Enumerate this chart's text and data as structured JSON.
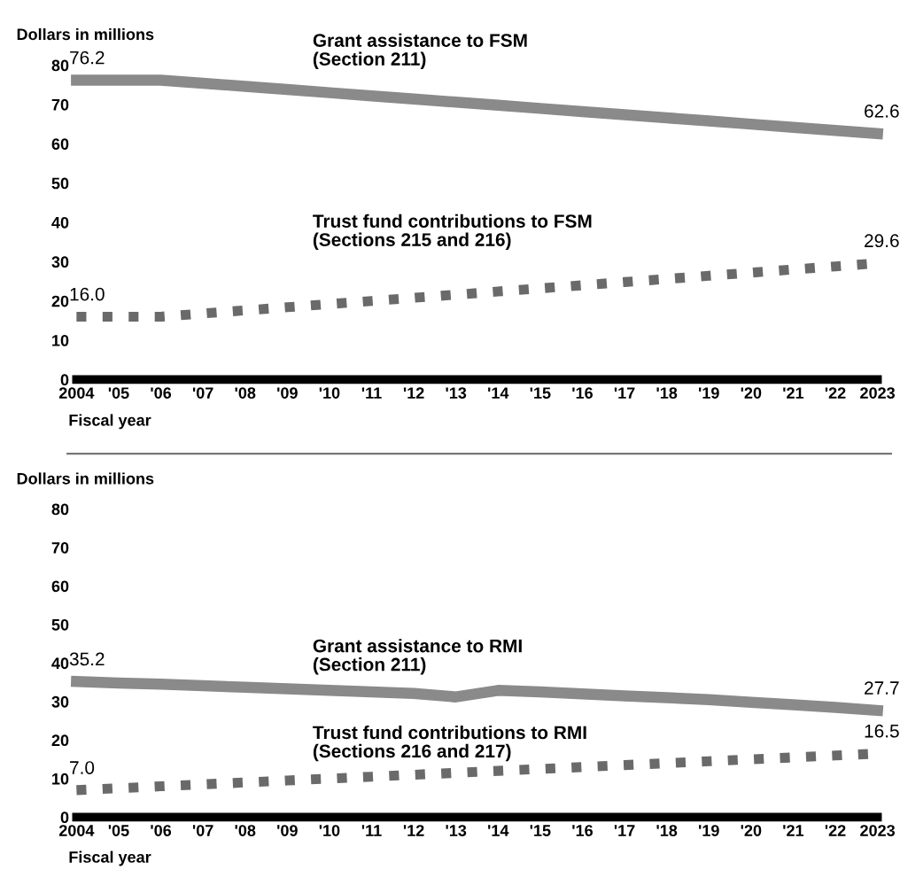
{
  "chart_data": [
    {
      "type": "line",
      "ylabel": "Dollars in millions",
      "xlabel": "Fiscal year",
      "x": [
        2004,
        2005,
        2006,
        2007,
        2008,
        2009,
        2010,
        2011,
        2012,
        2013,
        2014,
        2015,
        2016,
        2017,
        2018,
        2019,
        2020,
        2021,
        2022,
        2023
      ],
      "xlim": [
        2004,
        2023
      ],
      "ylim": [
        0,
        80
      ],
      "xticks": [
        2004,
        {
          "value": 2005,
          "label": "'05"
        },
        {
          "value": 2006,
          "label": "'06"
        },
        {
          "value": 2007,
          "label": "'07"
        },
        {
          "value": 2008,
          "label": "'08"
        },
        {
          "value": 2009,
          "label": "'09"
        },
        {
          "value": 2010,
          "label": "'10"
        },
        {
          "value": 2011,
          "label": "'11"
        },
        {
          "value": 2012,
          "label": "'12"
        },
        {
          "value": 2013,
          "label": "'13"
        },
        {
          "value": 2014,
          "label": "'14"
        },
        {
          "value": 2015,
          "label": "'15"
        },
        {
          "value": 2016,
          "label": "'16"
        },
        {
          "value": 2017,
          "label": "'17"
        },
        {
          "value": 2018,
          "label": "'18"
        },
        {
          "value": 2019,
          "label": "'19"
        },
        {
          "value": 2020,
          "label": "'20"
        },
        {
          "value": 2021,
          "label": "'21"
        },
        {
          "value": 2022,
          "label": "'22"
        },
        2023
      ],
      "yticks": [
        0,
        10,
        20,
        30,
        40,
        50,
        60,
        70,
        80
      ],
      "grid": false,
      "legend": false,
      "marker": "none",
      "series": [
        {
          "name": "Grant assistance to FSM\n(Section 211)",
          "color": "#8a8a8a",
          "line_style": "solid",
          "values": [
            76.2,
            76.2,
            76.2,
            75.4,
            74.6,
            73.8,
            73.0,
            72.2,
            71.4,
            70.6,
            69.8,
            69.0,
            68.2,
            67.4,
            66.6,
            65.8,
            65.0,
            64.2,
            63.4,
            62.6
          ],
          "value_labels": [
            "76.2",
            null,
            null,
            null,
            null,
            null,
            null,
            null,
            null,
            null,
            null,
            null,
            null,
            null,
            null,
            null,
            null,
            null,
            null,
            "62.6"
          ]
        },
        {
          "name": "Trust fund contributions to FSM\n(Sections 215 and 216)",
          "color": "#6a6a6a",
          "line_style": "dotted",
          "values": [
            16.0,
            16.0,
            16.0,
            16.8,
            17.6,
            18.4,
            19.2,
            20.0,
            20.8,
            21.6,
            22.4,
            23.2,
            24.0,
            24.8,
            25.6,
            26.4,
            27.2,
            28.0,
            28.8,
            29.6
          ],
          "value_labels": [
            "16.0",
            null,
            null,
            null,
            null,
            null,
            null,
            null,
            null,
            null,
            null,
            null,
            null,
            null,
            null,
            null,
            null,
            null,
            null,
            "29.6"
          ]
        }
      ]
    },
    {
      "type": "line",
      "ylabel": "Dollars in millions",
      "xlabel": "Fiscal year",
      "x": [
        2004,
        2005,
        2006,
        2007,
        2008,
        2009,
        2010,
        2011,
        2012,
        2013,
        2014,
        2015,
        2016,
        2017,
        2018,
        2019,
        2020,
        2021,
        2022,
        2023
      ],
      "xlim": [
        2004,
        2023
      ],
      "ylim": [
        0,
        80
      ],
      "xticks": [
        2004,
        {
          "value": 2005,
          "label": "'05"
        },
        {
          "value": 2006,
          "label": "'06"
        },
        {
          "value": 2007,
          "label": "'07"
        },
        {
          "value": 2008,
          "label": "'08"
        },
        {
          "value": 2009,
          "label": "'09"
        },
        {
          "value": 2010,
          "label": "'10"
        },
        {
          "value": 2011,
          "label": "'11"
        },
        {
          "value": 2012,
          "label": "'12"
        },
        {
          "value": 2013,
          "label": "'13"
        },
        {
          "value": 2014,
          "label": "'14"
        },
        {
          "value": 2015,
          "label": "'15"
        },
        {
          "value": 2016,
          "label": "'16"
        },
        {
          "value": 2017,
          "label": "'17"
        },
        {
          "value": 2018,
          "label": "'18"
        },
        {
          "value": 2019,
          "label": "'19"
        },
        {
          "value": 2020,
          "label": "'20"
        },
        {
          "value": 2021,
          "label": "'21"
        },
        {
          "value": 2022,
          "label": "'22"
        },
        2023
      ],
      "yticks": [
        0,
        10,
        20,
        30,
        40,
        50,
        60,
        70,
        80
      ],
      "grid": false,
      "legend": false,
      "marker": "none",
      "series": [
        {
          "name": "Grant assistance to RMI\n(Section 211)",
          "color": "#8a8a8a",
          "line_style": "solid",
          "values": [
            35.2,
            34.8,
            34.5,
            34.1,
            33.7,
            33.3,
            32.9,
            32.5,
            32.1,
            31.2,
            32.9,
            32.5,
            32.0,
            31.5,
            31.0,
            30.5,
            29.8,
            29.2,
            28.5,
            27.7
          ],
          "value_labels": [
            "35.2",
            null,
            null,
            null,
            null,
            null,
            null,
            null,
            null,
            null,
            null,
            null,
            null,
            null,
            null,
            null,
            null,
            null,
            null,
            "27.7"
          ]
        },
        {
          "name": "Trust fund contributions to RMI\n(Sections 216 and 217)",
          "color": "#6a6a6a",
          "line_style": "dotted",
          "values": [
            7.0,
            7.5,
            8.0,
            8.5,
            9.0,
            9.5,
            10.0,
            10.5,
            11.0,
            11.5,
            12.0,
            12.5,
            13.0,
            13.5,
            14.0,
            14.5,
            15.0,
            15.5,
            16.0,
            16.5
          ],
          "value_labels": [
            "7.0",
            null,
            null,
            null,
            null,
            null,
            null,
            null,
            null,
            null,
            null,
            null,
            null,
            null,
            null,
            null,
            null,
            null,
            null,
            "16.5"
          ]
        }
      ]
    }
  ]
}
